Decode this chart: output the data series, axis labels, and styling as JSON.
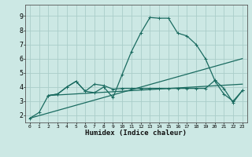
{
  "title": "",
  "xlabel": "Humidex (Indice chaleur)",
  "bg_color": "#cce8e4",
  "grid_color": "#aacdc9",
  "line_color": "#1a6b60",
  "xlim": [
    -0.5,
    23.5
  ],
  "ylim": [
    1.5,
    9.8
  ],
  "xticks": [
    0,
    1,
    2,
    3,
    4,
    5,
    6,
    7,
    8,
    9,
    10,
    11,
    12,
    13,
    14,
    15,
    16,
    17,
    18,
    19,
    20,
    21,
    22,
    23
  ],
  "yticks": [
    2,
    3,
    4,
    5,
    6,
    7,
    8,
    9
  ],
  "line1_x": [
    0,
    1,
    2,
    3,
    4,
    5,
    6,
    7,
    8,
    9,
    10,
    11,
    12,
    13,
    14,
    15,
    16,
    17,
    18,
    19,
    20,
    21,
    22,
    23
  ],
  "line1_y": [
    1.8,
    2.2,
    3.4,
    3.5,
    4.0,
    4.4,
    3.7,
    3.6,
    4.0,
    3.25,
    4.9,
    6.5,
    7.8,
    8.9,
    8.85,
    8.85,
    7.8,
    7.6,
    7.0,
    6.0,
    4.5,
    3.9,
    2.9,
    3.75
  ],
  "line2_x": [
    2,
    3,
    4,
    5,
    6,
    7,
    8,
    9,
    10,
    11,
    12,
    13,
    14,
    15,
    16,
    17,
    18,
    19,
    20,
    21,
    22,
    23
  ],
  "line2_y": [
    3.4,
    3.5,
    4.0,
    4.4,
    3.7,
    4.2,
    4.1,
    3.85,
    3.9,
    3.9,
    3.9,
    3.9,
    3.9,
    3.9,
    3.9,
    3.9,
    3.9,
    3.9,
    4.45,
    3.5,
    3.0,
    3.75
  ],
  "line3_x": [
    0,
    23
  ],
  "line3_y": [
    1.8,
    6.0
  ],
  "line4_x": [
    2,
    23
  ],
  "line4_y": [
    3.4,
    4.2
  ]
}
